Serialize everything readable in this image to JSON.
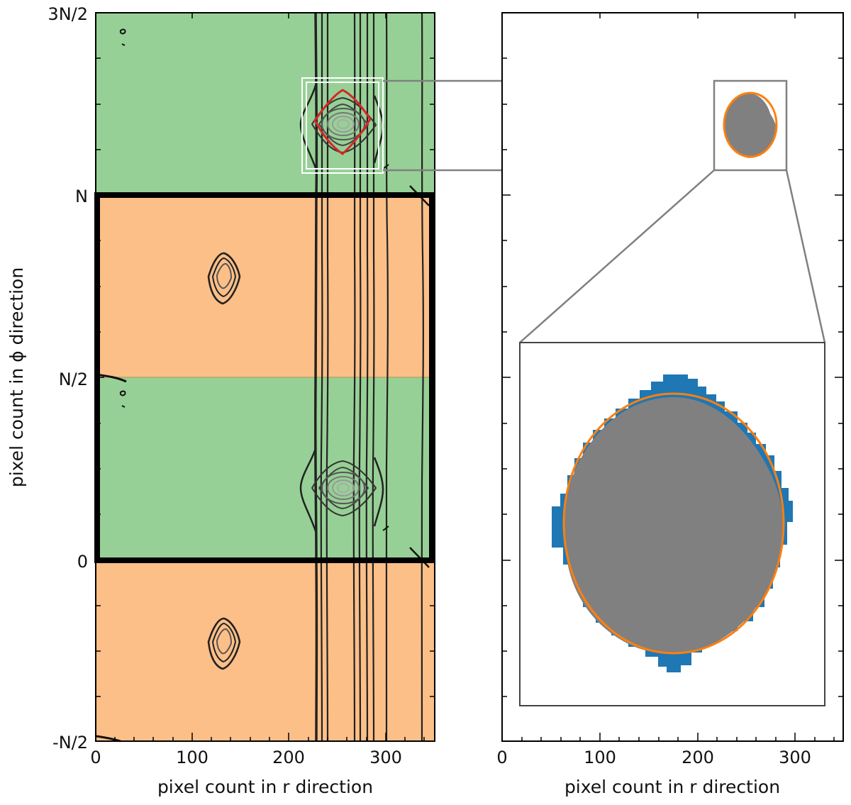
{
  "chart_data": [
    {
      "type": "contour",
      "xlabel": "pixel count in r direction",
      "ylabel": "pixel count in ϕ direction",
      "xlim": [
        0,
        350
      ],
      "ylim_labels": [
        "-N/2",
        "N/2 (bottom) ... 3N/2 (top)"
      ],
      "x_ticks": [
        0,
        100,
        200,
        300
      ],
      "y_ticks": [
        "-N/2",
        "0",
        "N/2",
        "N",
        "3N/2"
      ],
      "bands": [
        {
          "from": "-N/2",
          "to": "0",
          "color": "#fdbf88"
        },
        {
          "from": "0",
          "to": "N/2",
          "color": "#97d096"
        },
        {
          "from": "N/2",
          "to": "N",
          "color": "#fdbf88"
        },
        {
          "from": "N",
          "to": "3N/2",
          "color": "#97d096"
        }
      ],
      "features": {
        "vortex_r": 255,
        "vortex_phi": [
          "0.3N",
          "1.3N"
        ],
        "small_blob_r": 128,
        "small_blob_phi": [
          "-0.2N",
          "0.8N"
        ],
        "thick_boundary_phi": [
          "0",
          "N"
        ],
        "highlight_box": {
          "r": [
            215,
            295
          ],
          "phi": [
            "1.05N",
            "1.3N"
          ]
        }
      }
    },
    {
      "type": "mask",
      "xlabel": "pixel count in r direction",
      "xlim": [
        0,
        350
      ],
      "x_ticks": [
        0,
        100,
        200,
        300
      ],
      "series": [
        {
          "name": "mask",
          "color": "#808080"
        },
        {
          "name": "fit ellipse",
          "color": "#ff7f0e"
        },
        {
          "name": "excess",
          "color": "#1f77b4"
        }
      ]
    }
  ],
  "labels": {
    "xlabel_left": "pixel count in r direction",
    "xlabel_right": "pixel count in r direction",
    "ylabel": "pixel count in ϕ direction",
    "xticks": [
      "0",
      "100",
      "200",
      "300"
    ],
    "yticks": [
      "3N/2",
      "N",
      "N/2",
      "0",
      "-N/2"
    ]
  },
  "colors": {
    "orange_band": "#fdbf88",
    "green_band": "#97d096",
    "mask_gray": "#808080",
    "ellipse_orange": "#ff7f0e",
    "excess_blue": "#1f77b4",
    "contour_red": "#d62728"
  }
}
